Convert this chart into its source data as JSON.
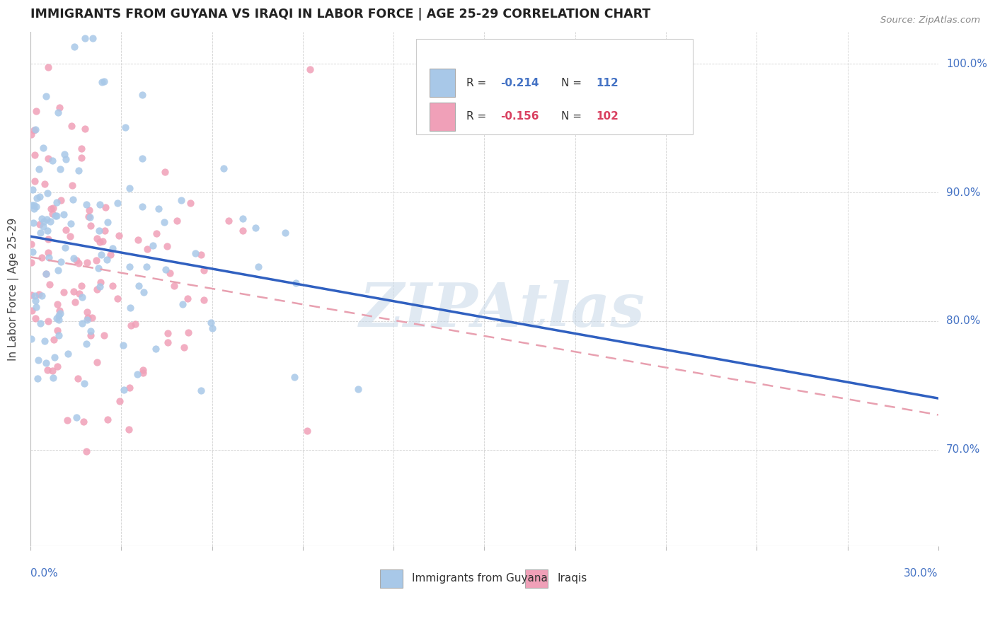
{
  "title": "IMMIGRANTS FROM GUYANA VS IRAQI IN LABOR FORCE | AGE 25-29 CORRELATION CHART",
  "source": "Source: ZipAtlas.com",
  "ylabel": "In Labor Force | Age 25-29",
  "ytick_labels": [
    "70.0%",
    "80.0%",
    "90.0%",
    "100.0%"
  ],
  "ytick_values": [
    0.7,
    0.8,
    0.9,
    1.0
  ],
  "xlim": [
    0.0,
    0.3
  ],
  "ylim": [
    0.625,
    1.025
  ],
  "bottom_legend": [
    "Immigrants from Guyana",
    "Iraqis"
  ],
  "guyana_color": "#a8c8e8",
  "iraqi_color": "#f0a0b8",
  "trend_guyana_color": "#3060c0",
  "trend_iraqi_color": "#e8a0b0",
  "watermark": "ZIPAtlas",
  "watermark_color": "#c8d8e8",
  "R_guyana": -0.214,
  "N_guyana": 112,
  "R_iraqi": -0.156,
  "N_iraqi": 102,
  "seed": 42,
  "legend_R_color": "#4472c4",
  "legend_R2_color": "#d94060",
  "legend_N_color": "#4472c4",
  "legend_N2_color": "#d94060"
}
